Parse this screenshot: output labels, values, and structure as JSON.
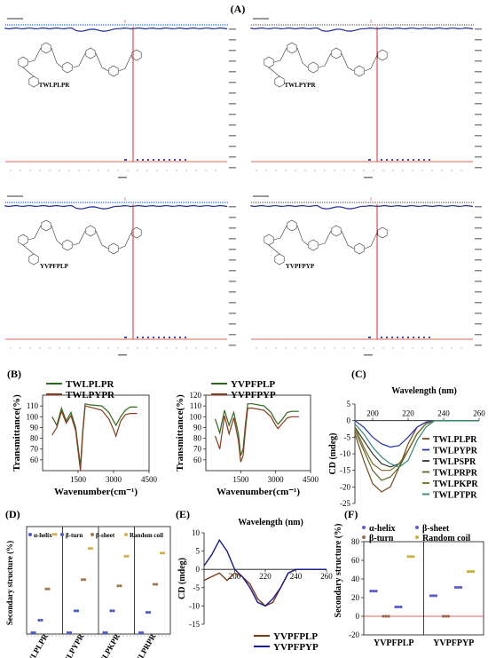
{
  "panel_labels": {
    "A": "(A)",
    "B": "(B)",
    "C": "(C)",
    "D": "(D)",
    "E": "(E)",
    "F": "(F)"
  },
  "panel_a": {
    "spectra": [
      {
        "peptide": "TWLPLPR"
      },
      {
        "peptide": "TWLPYPR"
      },
      {
        "peptide": "YVPFPLP"
      },
      {
        "peptide": "YVPFPYP"
      }
    ]
  },
  "colors": {
    "green": "#2e6b1e",
    "brown": "#8a3a1e",
    "blue": "#1f2d9a",
    "red": "#c0392b",
    "olive": "#6b6b1e"
  },
  "chart_data": [
    {
      "type": "line",
      "panel": "B-left",
      "xlabel": "Wavenumber(cm⁻¹)",
      "ylabel": "Transmittance(%)",
      "xlim": [
        0,
        4500
      ],
      "ylim": [
        50,
        120
      ],
      "xticks": [
        1500,
        3000,
        4500
      ],
      "yticks": [
        60,
        70,
        80,
        90,
        100,
        110
      ],
      "series": [
        {
          "name": "TWLPLPR",
          "color": "#2e6b1e",
          "x": [
            400,
            600,
            800,
            1000,
            1200,
            1400,
            1500,
            1600,
            1700,
            1800,
            2000,
            2500,
            2800,
            3000,
            3100,
            3300,
            3500,
            3700,
            4000
          ],
          "y": [
            100,
            92,
            108,
            96,
            104,
            90,
            72,
            54,
            88,
            112,
            111,
            110,
            104,
            96,
            92,
            100,
            106,
            109,
            109
          ]
        },
        {
          "name": "TWLPYPR",
          "color": "#8a3a1e",
          "x": [
            400,
            600,
            800,
            1000,
            1200,
            1400,
            1500,
            1600,
            1700,
            1800,
            2000,
            2500,
            2800,
            3000,
            3100,
            3300,
            3500,
            3700,
            4000
          ],
          "y": [
            83,
            90,
            105,
            94,
            101,
            87,
            68,
            50,
            85,
            110,
            109,
            106,
            98,
            88,
            82,
            96,
            102,
            103,
            103
          ]
        }
      ]
    },
    {
      "type": "line",
      "panel": "B-right",
      "xlabel": "Wavenumber(cm⁻¹)",
      "ylabel": "Transmittance(%)",
      "xlim": [
        0,
        4500
      ],
      "ylim": [
        50,
        120
      ],
      "xticks": [
        1500,
        3000,
        4500
      ],
      "yticks": [
        60,
        70,
        80,
        90,
        100,
        110,
        120
      ],
      "series": [
        {
          "name": "YVPFPLP",
          "color": "#2e6b1e",
          "x": [
            400,
            600,
            800,
            1000,
            1200,
            1400,
            1500,
            1600,
            1700,
            1800,
            2000,
            2500,
            2800,
            3000,
            3100,
            3300,
            3500,
            3700,
            4000
          ],
          "y": [
            98,
            85,
            106,
            92,
            104,
            84,
            64,
            70,
            93,
            112,
            112,
            110,
            104,
            96,
            93,
            98,
            104,
            105,
            105
          ]
        },
        {
          "name": "YVPFPYP",
          "color": "#8a3a1e",
          "x": [
            400,
            600,
            800,
            1000,
            1200,
            1400,
            1500,
            1600,
            1700,
            1800,
            2000,
            2500,
            2800,
            3000,
            3100,
            3300,
            3500,
            3700,
            4000
          ],
          "y": [
            82,
            70,
            101,
            84,
            99,
            78,
            58,
            64,
            88,
            108,
            108,
            106,
            100,
            92,
            89,
            94,
            99,
            100,
            100
          ]
        }
      ]
    },
    {
      "type": "line",
      "panel": "C",
      "title": "Wavelength (nm)",
      "ylabel": "CD (mdeg)",
      "xlim": [
        190,
        260
      ],
      "ylim": [
        -25,
        5
      ],
      "xticks": [
        200,
        220,
        240,
        260
      ],
      "yticks": [
        5,
        0,
        -5,
        -10,
        -15,
        -20,
        -25
      ],
      "series": [
        {
          "name": "TWLPLPR",
          "color": "#7a4a1e",
          "x": [
            190,
            195,
            200,
            205,
            210,
            215,
            220,
            225,
            230,
            235,
            240,
            250,
            260
          ],
          "y": [
            -4,
            -12,
            -19,
            -21.5,
            -20,
            -14,
            -7,
            -2,
            -0.5,
            0,
            0,
            0,
            0
          ]
        },
        {
          "name": "TWLPYPR",
          "color": "#2233aa",
          "x": [
            190,
            195,
            200,
            205,
            210,
            215,
            220,
            225,
            230,
            235,
            240,
            250,
            260
          ],
          "y": [
            0,
            -2,
            -5,
            -7,
            -8,
            -7.5,
            -5,
            -2,
            -0.5,
            0,
            0,
            0,
            0
          ]
        },
        {
          "name": "TWLPSPR",
          "color": "#333333",
          "x": [
            190,
            195,
            200,
            205,
            210,
            215,
            220,
            225,
            230,
            235,
            240,
            250,
            260
          ],
          "y": [
            -2,
            -6,
            -10,
            -13,
            -14,
            -13,
            -9,
            -4,
            -1,
            0,
            0,
            0,
            0
          ]
        },
        {
          "name": "TWLPRPR",
          "color": "#5a6a2a",
          "x": [
            190,
            195,
            200,
            205,
            210,
            215,
            220,
            225,
            230,
            235,
            240,
            250,
            260
          ],
          "y": [
            -3,
            -9,
            -15,
            -18,
            -17,
            -14,
            -9,
            -4,
            -1,
            0,
            0,
            0,
            0
          ]
        },
        {
          "name": "TWLPKPR",
          "color": "#7a6a1e",
          "x": [
            190,
            195,
            200,
            205,
            210,
            215,
            220,
            225,
            230,
            235,
            240,
            250,
            260
          ],
          "y": [
            -2,
            -8,
            -13,
            -15,
            -15,
            -13,
            -9,
            -4,
            -1,
            0,
            0,
            0,
            0
          ]
        },
        {
          "name": "TWLPTPR",
          "color": "#2f8a7a",
          "x": [
            190,
            195,
            200,
            205,
            210,
            215,
            220,
            225,
            230,
            235,
            240,
            250,
            260
          ],
          "y": [
            -1,
            -4,
            -8,
            -11,
            -13,
            -14,
            -12,
            -6,
            -2,
            0,
            0,
            0,
            0
          ]
        }
      ]
    },
    {
      "type": "scatter",
      "panel": "D",
      "ylabel": "Secondary structure (%)",
      "ylim": [
        0,
        70
      ],
      "categories": [
        "TWLPLPR",
        "TWLPYPR",
        "TWLPKPR",
        "TWLPRPR"
      ],
      "series": [
        {
          "name": "α-helix",
          "color": "#4a5ad0",
          "values": [
            2,
            2,
            2,
            2
          ]
        },
        {
          "name": "β-turn",
          "color": "#4a5ad0",
          "values": [
            10,
            16,
            16,
            15
          ]
        },
        {
          "name": "β-sheet",
          "color": "#a07850",
          "values": [
            30,
            36,
            32,
            33
          ]
        },
        {
          "name": "Random coil",
          "color": "#d6b04a",
          "values": [
            65,
            56,
            51,
            53
          ]
        }
      ]
    },
    {
      "type": "line",
      "panel": "E",
      "title": "Wavelength (nm)",
      "ylabel": "CD (mdeg)",
      "xlim": [
        180,
        260
      ],
      "ylim": [
        -15,
        10
      ],
      "xticks": [
        200,
        220,
        240,
        260
      ],
      "yticks": [
        10,
        5,
        0,
        -5,
        -10,
        -15
      ],
      "series": [
        {
          "name": "YVPFPLP",
          "color": "#7a3a1a",
          "x": [
            180,
            185,
            190,
            195,
            200,
            205,
            210,
            215,
            220,
            225,
            230,
            235,
            240,
            250,
            260
          ],
          "y": [
            -3,
            -2,
            -1,
            -3,
            -1,
            -2,
            -4,
            -8,
            -10,
            -9,
            -5,
            -1,
            0,
            0,
            0
          ]
        },
        {
          "name": "YVPFPYP",
          "color": "#1a1a8a",
          "x": [
            180,
            185,
            190,
            195,
            200,
            205,
            210,
            215,
            220,
            225,
            230,
            235,
            240,
            250,
            260
          ],
          "y": [
            1,
            4,
            8,
            5,
            0,
            -2,
            -5,
            -9,
            -10,
            -8,
            -5,
            -1,
            0,
            0,
            0
          ]
        }
      ]
    },
    {
      "type": "scatter",
      "panel": "F",
      "ylabel": "Secondary structure (%)",
      "ylim": [
        -20,
        80
      ],
      "yticks": [
        -20,
        0,
        20,
        40,
        60,
        80
      ],
      "categories": [
        "YVPFPLP",
        "YVPFPYP"
      ],
      "series": [
        {
          "name": "α-helix",
          "color": "#5a5ad0",
          "values": [
            27,
            22
          ]
        },
        {
          "name": "β-turn",
          "color": "#a06850",
          "values": [
            0,
            0
          ]
        },
        {
          "name": "β-sheet",
          "color": "#5a5ad0",
          "values": [
            10,
            31
          ]
        },
        {
          "name": "Random coil",
          "color": "#c8b03a",
          "values": [
            64,
            48
          ]
        }
      ]
    }
  ]
}
